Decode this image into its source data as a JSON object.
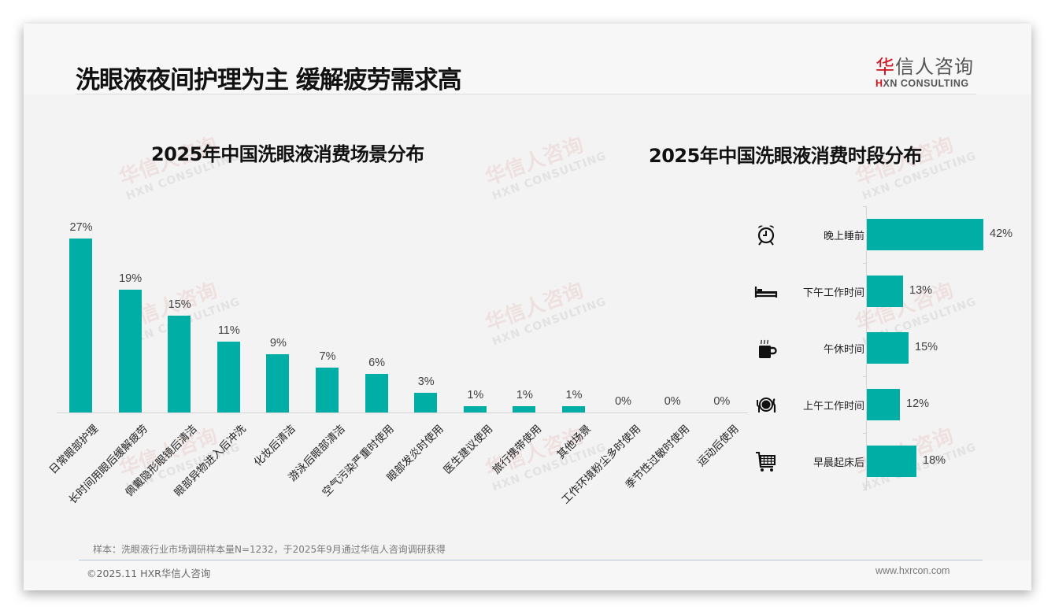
{
  "header": {
    "title": "洗眼液夜间护理为主 缓解疲劳需求高",
    "logo": {
      "cn_red": "华",
      "cn_rest": "信人咨询",
      "en_red": "H",
      "en_rest": "XN CONSULTING"
    }
  },
  "watermark": {
    "cn": "华信人咨询",
    "en": "HXN CONSULTING"
  },
  "colors": {
    "bar": "#00aea5",
    "accent_red": "#d0101b",
    "background": "#f3f3f3"
  },
  "chart_data": [
    {
      "type": "bar",
      "title": "2025年中国洗眼液消费场景分布",
      "xlabel": "",
      "ylabel": "",
      "ylim": [
        0,
        30
      ],
      "grid": false,
      "legend": "none",
      "categories": [
        "日常眼部护理",
        "长时间用眼后缓解疲劳",
        "佩戴隐形眼镜后清洁",
        "眼部异物进入后冲洗",
        "化妆后清洁",
        "游泳后眼部清洁",
        "空气污染严重时使用",
        "眼部发炎时使用",
        "医生建议使用",
        "旅行携带使用",
        "其他场景",
        "工作环境粉尘多时使用",
        "季节性过敏时使用",
        "运动后使用"
      ],
      "values": [
        27,
        19,
        15,
        11,
        9,
        7,
        6,
        3,
        1,
        1,
        1,
        0,
        0,
        0
      ],
      "value_labels": [
        "27%",
        "19%",
        "15%",
        "11%",
        "9%",
        "7%",
        "6%",
        "3%",
        "1%",
        "1%",
        "1%",
        "0%",
        "0%",
        "0%"
      ]
    },
    {
      "type": "bar",
      "orientation": "horizontal",
      "title": "2025年中国洗眼液消费时段分布",
      "xlabel": "",
      "ylabel": "",
      "xlim": [
        0,
        45
      ],
      "grid": false,
      "legend": "none",
      "categories": [
        "晚上睡前",
        "下午工作时间",
        "午休时间",
        "上午工作时间",
        "早晨起床后"
      ],
      "icons": [
        "alarm-clock-icon",
        "bed-icon",
        "coffee-mug-icon",
        "dining-plate-icon",
        "shopping-cart-icon"
      ],
      "values": [
        42,
        13,
        15,
        12,
        18
      ],
      "value_labels": [
        "42%",
        "13%",
        "15%",
        "12%",
        "18%"
      ]
    }
  ],
  "footer": {
    "note": "样本：洗眼液行业市场调研样本量N=1232，于2025年9月通过华信人咨询调研获得",
    "copyright": "©2025.11 HXR华信人咨询",
    "website": "www.hxrcon.com"
  }
}
